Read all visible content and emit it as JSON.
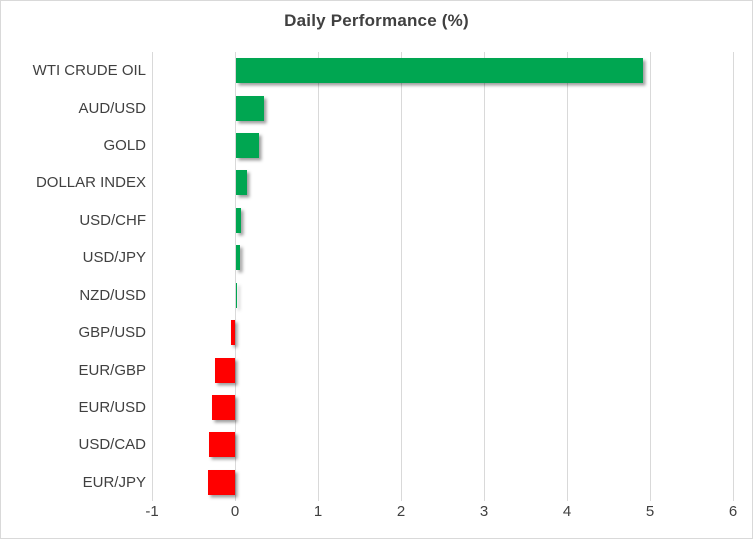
{
  "chart_data": {
    "type": "bar",
    "orientation": "horizontal",
    "title": "Daily Performance (%)",
    "categories": [
      "WTI CRUDE OIL",
      "AUD/USD",
      "GOLD",
      "DOLLAR INDEX",
      "USD/CHF",
      "USD/JPY",
      "NZD/USD",
      "GBP/USD",
      "EUR/GBP",
      "EUR/USD",
      "USD/CAD",
      "EUR/JPY"
    ],
    "values": [
      4.9,
      0.34,
      0.28,
      0.13,
      0.06,
      0.05,
      0.01,
      -0.05,
      -0.24,
      -0.28,
      -0.31,
      -0.33
    ],
    "xlabel": "",
    "ylabel": "",
    "xlim": [
      -1,
      6
    ],
    "x_ticks": [
      "-1",
      "0",
      "1",
      "2",
      "3",
      "4",
      "5",
      "6"
    ],
    "grid": "vertical-gridlines",
    "legend": "none",
    "colors": {
      "positive": "#00A651",
      "negative": "#FF0000",
      "grid": "#D9D9D9",
      "text": "#404040",
      "border": "#D9D9D9",
      "background": "#FFFFFF"
    }
  }
}
